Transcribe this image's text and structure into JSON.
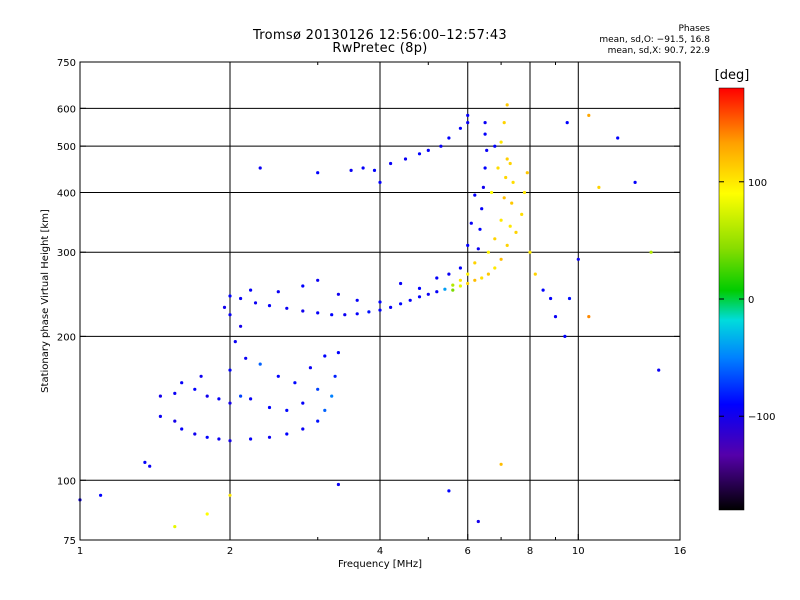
{
  "header": {
    "title": "Tromsø 20130126 12:56:00–12:57:43",
    "subtitle": "RwPretec (8p)"
  },
  "stats": {
    "heading": "Phases",
    "line_o": "mean, sd,O: −91.5, 16.8",
    "line_x": "mean, sd,X:  90.7, 22.9"
  },
  "colorbar": {
    "unit_label": "[deg]",
    "ticks": [
      {
        "label": "100",
        "value": 100
      },
      {
        "label": "0",
        "value": 0
      },
      {
        "label": "−100",
        "value": -100
      }
    ],
    "range": [
      -180,
      180
    ],
    "palette": [
      "#000000",
      "#5500aa",
      "#0000ff",
      "#0080ff",
      "#00dcdc",
      "#00cc00",
      "#88dd00",
      "#ffff00",
      "#ffa000",
      "#ff0000"
    ]
  },
  "chart_data": {
    "type": "scatter",
    "title": "Tromsø 20130126 12:56:00–12:57:43",
    "subtitle": "RwPretec (8p)",
    "xlabel": "Frequency [MHz]",
    "ylabel": "Stationary phase Virtual Height [km]",
    "xscale": "log",
    "yscale": "log",
    "xlim": [
      1,
      16
    ],
    "ylim": [
      75,
      750
    ],
    "xticks": [
      {
        "label": "1",
        "value": 1
      },
      {
        "label": "2",
        "value": 2
      },
      {
        "label": "4",
        "value": 4
      },
      {
        "label": "6",
        "value": 6
      },
      {
        "label": "8",
        "value": 8
      },
      {
        "label": "10",
        "value": 10
      },
      {
        "label": "16",
        "value": 16
      }
    ],
    "xminor": [
      3,
      5,
      7,
      9
    ],
    "yticks": [
      {
        "label": "75",
        "value": 75
      },
      {
        "label": "100",
        "value": 100
      },
      {
        "label": "200",
        "value": 200
      },
      {
        "label": "300",
        "value": 300
      },
      {
        "label": "400",
        "value": 400
      },
      {
        "label": "500",
        "value": 500
      },
      {
        "label": "600",
        "value": 600
      },
      {
        "label": "750",
        "value": 750
      }
    ],
    "grid": true,
    "color_by": "phase",
    "points": [
      [
        1.45,
        136,
        -95
      ],
      [
        1.55,
        133,
        -100
      ],
      [
        1.6,
        128,
        -92
      ],
      [
        1.7,
        125,
        -98
      ],
      [
        1.8,
        123,
        -90
      ],
      [
        1.9,
        122,
        -95
      ],
      [
        2.0,
        121,
        -100
      ],
      [
        2.2,
        122,
        -93
      ],
      [
        2.4,
        123,
        -96
      ],
      [
        2.6,
        125,
        -90
      ],
      [
        2.8,
        128,
        -94
      ],
      [
        3.0,
        133,
        -85
      ],
      [
        3.1,
        140,
        -60
      ],
      [
        3.2,
        150,
        -50
      ],
      [
        3.25,
        165,
        -80
      ],
      [
        3.3,
        185,
        -90
      ],
      [
        1.45,
        150,
        -100
      ],
      [
        1.55,
        152,
        -95
      ],
      [
        1.7,
        155,
        -90
      ],
      [
        1.8,
        150,
        -98
      ],
      [
        1.9,
        148,
        -92
      ],
      [
        2.0,
        145,
        -100
      ],
      [
        2.1,
        150,
        -70
      ],
      [
        2.2,
        148,
        -94
      ],
      [
        2.4,
        142,
        -90
      ],
      [
        2.6,
        140,
        -88
      ],
      [
        2.8,
        145,
        -92
      ],
      [
        3.0,
        155,
        -70
      ],
      [
        1.6,
        160,
        -93
      ],
      [
        1.75,
        165,
        -97
      ],
      [
        2.0,
        170,
        -90
      ],
      [
        2.15,
        180,
        -95
      ],
      [
        2.3,
        175,
        -60
      ],
      [
        2.5,
        165,
        -90
      ],
      [
        2.7,
        160,
        -88
      ],
      [
        2.9,
        172,
        -95
      ],
      [
        3.1,
        182,
        -90
      ],
      [
        2.05,
        195,
        -95
      ],
      [
        2.1,
        210,
        -100
      ],
      [
        2.0,
        222,
        -94
      ],
      [
        1.95,
        230,
        -98
      ],
      [
        1.35,
        109,
        -92
      ],
      [
        1.38,
        107,
        -95
      ],
      [
        1.1,
        93,
        -90
      ],
      [
        1.0,
        91,
        -98
      ],
      [
        2.0,
        243,
        -90
      ],
      [
        2.1,
        240,
        -94
      ],
      [
        2.25,
        235,
        -96
      ],
      [
        2.4,
        232,
        -92
      ],
      [
        2.6,
        229,
        -95
      ],
      [
        2.8,
        226,
        -98
      ],
      [
        3.0,
        224,
        -93
      ],
      [
        3.2,
        222,
        -90
      ],
      [
        3.4,
        222,
        -96
      ],
      [
        3.6,
        223,
        -92
      ],
      [
        3.8,
        225,
        -85
      ],
      [
        4.0,
        227,
        -90
      ],
      [
        4.2,
        230,
        -94
      ],
      [
        4.4,
        234,
        -88
      ],
      [
        4.6,
        238,
        -92
      ],
      [
        4.8,
        242,
        -90
      ],
      [
        5.0,
        245,
        -96
      ],
      [
        5.2,
        248,
        -93
      ],
      [
        5.4,
        251,
        -40
      ],
      [
        5.6,
        256,
        60
      ],
      [
        5.8,
        262,
        100
      ],
      [
        6.0,
        270,
        95
      ],
      [
        6.2,
        285,
        110
      ],
      [
        6.3,
        305,
        -95
      ],
      [
        6.35,
        335,
        -90
      ],
      [
        6.4,
        370,
        -92
      ],
      [
        6.45,
        410,
        -98
      ],
      [
        6.5,
        450,
        -90
      ],
      [
        6.55,
        490,
        -94
      ],
      [
        6.5,
        530,
        -92
      ],
      [
        2.2,
        250,
        -92
      ],
      [
        2.5,
        248,
        -95
      ],
      [
        2.8,
        255,
        -90
      ],
      [
        3.0,
        262,
        -95
      ],
      [
        3.3,
        245,
        -98
      ],
      [
        3.6,
        238,
        -92
      ],
      [
        4.0,
        236,
        -90
      ],
      [
        4.4,
        258,
        -94
      ],
      [
        4.8,
        252,
        -90
      ],
      [
        5.2,
        265,
        -92
      ],
      [
        5.5,
        270,
        -95
      ],
      [
        5.8,
        278,
        -92
      ],
      [
        6.0,
        310,
        -90
      ],
      [
        6.1,
        345,
        -94
      ],
      [
        6.2,
        395,
        -92
      ],
      [
        5.6,
        250,
        40
      ],
      [
        5.8,
        255,
        80
      ],
      [
        6.0,
        258,
        110
      ],
      [
        6.2,
        262,
        120
      ],
      [
        6.4,
        265,
        105
      ],
      [
        6.6,
        270,
        115
      ],
      [
        6.8,
        278,
        100
      ],
      [
        7.0,
        290,
        120
      ],
      [
        7.2,
        310,
        110
      ],
      [
        7.3,
        340,
        100
      ],
      [
        7.35,
        380,
        115
      ],
      [
        7.4,
        420,
        105
      ],
      [
        7.3,
        460,
        110
      ],
      [
        6.6,
        300,
        95
      ],
      [
        6.8,
        320,
        110
      ],
      [
        7.0,
        350,
        100
      ],
      [
        7.1,
        390,
        120
      ],
      [
        7.15,
        430,
        108
      ],
      [
        7.2,
        470,
        112
      ],
      [
        7.0,
        510,
        100
      ],
      [
        7.1,
        560,
        110
      ],
      [
        7.2,
        610,
        115
      ],
      [
        6.7,
        400,
        90
      ],
      [
        6.9,
        450,
        105
      ],
      [
        6.8,
        500,
        -90
      ],
      [
        7.5,
        330,
        110
      ],
      [
        7.7,
        360,
        105
      ],
      [
        7.8,
        400,
        100
      ],
      [
        7.9,
        440,
        115
      ],
      [
        8.0,
        300,
        100
      ],
      [
        8.2,
        270,
        110
      ],
      [
        8.5,
        250,
        -90
      ],
      [
        8.8,
        240,
        -92
      ],
      [
        9.0,
        220,
        -95
      ],
      [
        9.4,
        200,
        -90
      ],
      [
        9.6,
        240,
        -85
      ],
      [
        9.5,
        560,
        -90
      ],
      [
        6.5,
        560,
        -95
      ],
      [
        6.0,
        580,
        -92
      ],
      [
        3.5,
        445,
        -95
      ],
      [
        3.7,
        450,
        -92
      ],
      [
        3.9,
        445,
        -90
      ],
      [
        4.2,
        460,
        -94
      ],
      [
        4.5,
        470,
        -95
      ],
      [
        4.8,
        482,
        -90
      ],
      [
        5.0,
        490,
        -92
      ],
      [
        5.3,
        500,
        -94
      ],
      [
        5.5,
        520,
        -90
      ],
      [
        5.8,
        545,
        -92
      ],
      [
        6.0,
        560,
        -95
      ],
      [
        2.3,
        450,
        -95
      ],
      [
        3.0,
        440,
        -90
      ],
      [
        4.0,
        420,
        -92
      ],
      [
        1.55,
        80,
        80
      ],
      [
        1.8,
        85,
        90
      ],
      [
        2.0,
        93,
        100
      ],
      [
        3.3,
        98,
        -95
      ],
      [
        5.5,
        95,
        -90
      ],
      [
        6.3,
        82,
        -100
      ],
      [
        7.0,
        108,
        120
      ],
      [
        10.5,
        580,
        130
      ],
      [
        11.0,
        410,
        110
      ],
      [
        12.0,
        520,
        -90
      ],
      [
        13.0,
        420,
        -92
      ],
      [
        14.0,
        300,
        60
      ],
      [
        14.5,
        170,
        -95
      ],
      [
        10.0,
        290,
        -95
      ],
      [
        10.5,
        220,
        140
      ]
    ]
  }
}
